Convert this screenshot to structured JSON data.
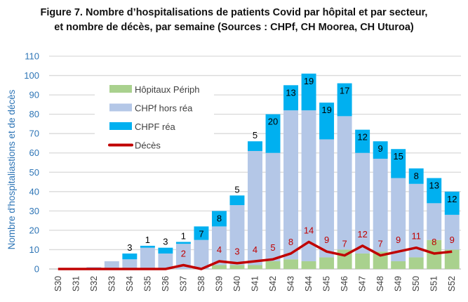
{
  "chart_data": {
    "type": "bar",
    "stacked": true,
    "title_line1": "Figure 7. Nombre d’hospitalisations de patients Covid par hôpital et par secteur,",
    "title_line2": "et nombre de décès, par semaine (Sources : CHPf, CH Moorea, CH Uturoa)",
    "ylabel": "Nombre d'hospitaliastions et de décès",
    "ylim": [
      0,
      110
    ],
    "yticks": [
      0,
      10,
      20,
      30,
      40,
      50,
      60,
      70,
      80,
      90,
      100,
      110
    ],
    "grid": true,
    "legend_position": "top-left",
    "categories": [
      "S30",
      "S31",
      "S32",
      "S33",
      "S34",
      "S35",
      "S36",
      "S37",
      "S38",
      "S39",
      "S40",
      "S41",
      "S42",
      "S43",
      "S44",
      "S45",
      "S46",
      "S47",
      "S48",
      "S49",
      "S50",
      "S51",
      "S52"
    ],
    "series": [
      {
        "name": "Hôpitaux Périph",
        "color": "#a9d18e",
        "values": [
          0,
          0,
          0,
          0,
          0,
          0,
          0,
          0,
          0,
          2,
          2,
          2,
          4,
          5,
          4,
          6,
          10,
          8,
          9,
          4,
          6,
          15,
          10
        ]
      },
      {
        "name": "CHPf hors réa",
        "color": "#b4c7e7",
        "values": [
          0,
          0,
          1,
          4,
          5,
          11,
          8,
          13,
          15,
          20,
          31,
          59,
          56,
          77,
          78,
          61,
          69,
          52,
          48,
          43,
          38,
          19,
          18
        ]
      },
      {
        "name": "CHPF réa",
        "color": "#00b0f0",
        "values": [
          0,
          0,
          0,
          0,
          3,
          1,
          3,
          1,
          7,
          8,
          5,
          5,
          20,
          13,
          19,
          19,
          17,
          12,
          9,
          15,
          8,
          13,
          12
        ]
      }
    ],
    "line": {
      "name": "Décès",
      "color": "#c00000",
      "values": [
        0,
        0,
        0,
        0,
        0,
        0,
        0,
        2,
        0,
        4,
        3,
        4,
        5,
        8,
        14,
        9,
        7,
        12,
        7,
        9,
        11,
        8,
        9
      ]
    }
  }
}
